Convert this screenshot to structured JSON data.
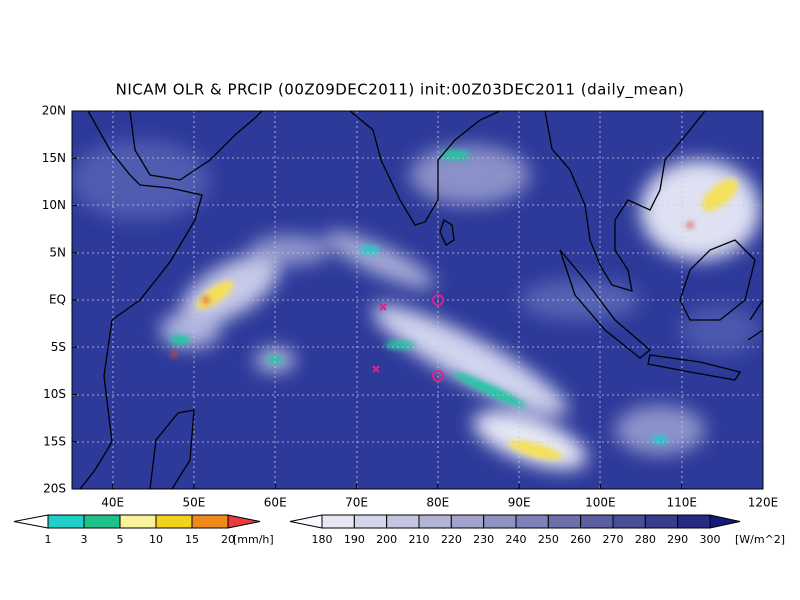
{
  "title": "NICAM OLR & PRCIP (00Z09DEC2011) init:00Z03DEC2011 (daily_mean)",
  "y_axis": {
    "labels": [
      "20N",
      "15N",
      "10N",
      "5N",
      "EQ",
      "5S",
      "10S",
      "15S",
      "20S"
    ]
  },
  "x_axis": {
    "labels": [
      "40E",
      "50E",
      "60E",
      "70E",
      "80E",
      "90E",
      "100E",
      "110E",
      "120E"
    ]
  },
  "precip_legend": {
    "labels": [
      "1",
      "3",
      "5",
      "10",
      "15",
      "20"
    ],
    "unit": "[mm/h]"
  },
  "olr_legend": {
    "labels": [
      "180",
      "190",
      "200",
      "210",
      "220",
      "230",
      "240",
      "250",
      "260",
      "270",
      "280",
      "290",
      "300"
    ],
    "unit": "[W/m^2]"
  }
}
